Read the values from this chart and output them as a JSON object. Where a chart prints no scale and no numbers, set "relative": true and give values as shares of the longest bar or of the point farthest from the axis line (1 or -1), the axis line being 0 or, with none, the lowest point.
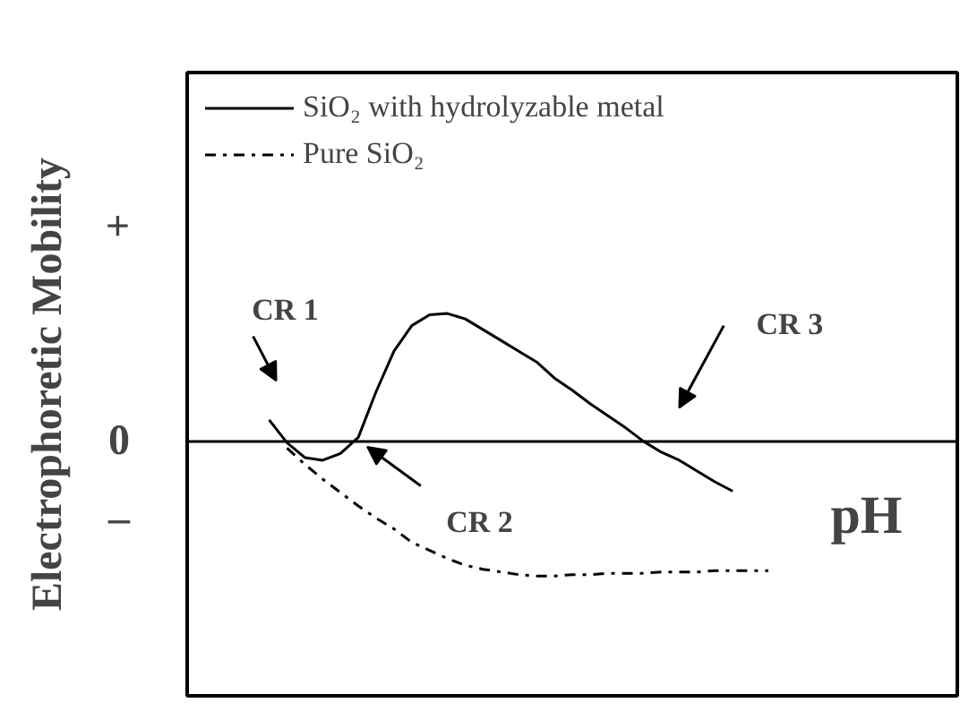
{
  "chart_data": {
    "type": "line",
    "relative": true,
    "ylabel": "Electrophoretic Mobility",
    "xlabel": "pH",
    "categories": [
      null,
      null,
      null,
      null,
      null,
      null,
      null,
      null,
      null,
      null,
      null,
      null,
      null,
      null,
      null,
      null,
      null,
      null,
      null,
      null,
      null,
      null,
      null,
      null,
      null,
      null,
      null,
      null,
      null
    ],
    "series": [
      {
        "name": "SiO₂ with hydrolyzable metal",
        "color": "#000000",
        "line_style": "solid",
        "values": [
          0.16,
          -0.01,
          -0.12,
          -0.14,
          -0.09,
          0.03,
          0.37,
          0.67,
          0.86,
          0.94,
          0.95,
          0.91,
          0.83,
          0.75,
          0.67,
          0.59,
          0.47,
          0.38,
          0.28,
          0.19,
          0.1,
          0.0,
          -0.08,
          -0.14,
          -0.22,
          -0.3,
          -0.37,
          null,
          null
        ]
      },
      {
        "name": "Pure SiO₂",
        "color": "#000000",
        "line_style": "dashdot",
        "values": [
          null,
          -0.05,
          -0.17,
          -0.28,
          -0.38,
          -0.48,
          -0.57,
          -0.65,
          -0.75,
          -0.81,
          -0.87,
          -0.92,
          -0.95,
          -0.97,
          -0.99,
          -1,
          -1,
          -0.99,
          -0.99,
          -0.98,
          -0.98,
          -0.98,
          -0.97,
          -0.97,
          -0.97,
          -0.96,
          -0.96,
          -0.96,
          -0.96
        ]
      }
    ],
    "annotations": [
      "+",
      "0",
      "–",
      "CR 1",
      "CR 2",
      "CR 3"
    ],
    "legend": "top left",
    "grid": false
  }
}
